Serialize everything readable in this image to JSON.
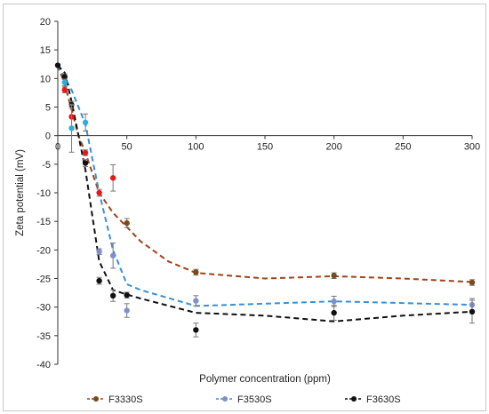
{
  "chart_data": {
    "type": "scatter",
    "xlabel": "Polymer concentration (ppm)",
    "ylabel": "Zeta potential (mV)",
    "xlim": [
      0,
      300
    ],
    "ylim": [
      -40,
      20
    ],
    "x_ticks": [
      0,
      50,
      100,
      150,
      200,
      250,
      300
    ],
    "y_ticks": [
      20,
      15,
      10,
      5,
      0,
      -5,
      -10,
      -15,
      -20,
      -25,
      -30,
      -35,
      -40
    ],
    "grid": false,
    "legend_position": "bottom",
    "legend": [
      "F3330S",
      "F3530S",
      "F3630S"
    ],
    "series": [
      {
        "name": "F3330S",
        "color": "#7a4a1a",
        "trend_color": "#a0421a",
        "points": [
          {
            "x": 50,
            "y": -15.3,
            "err": 0.8
          },
          {
            "x": 100,
            "y": -23.9,
            "err": 0.5
          },
          {
            "x": 200,
            "y": -24.5,
            "err": 0.5
          },
          {
            "x": 300,
            "y": -25.7,
            "err": 0.5
          }
        ],
        "trend": [
          [
            0,
            12.3
          ],
          [
            5,
            9
          ],
          [
            10,
            4.5
          ],
          [
            15,
            0
          ],
          [
            20,
            -3
          ],
          [
            25,
            -6.5
          ],
          [
            30,
            -10
          ],
          [
            40,
            -13.5
          ],
          [
            50,
            -16
          ],
          [
            60,
            -18.5
          ],
          [
            80,
            -22
          ],
          [
            100,
            -24
          ],
          [
            150,
            -25
          ],
          [
            200,
            -24.6
          ],
          [
            250,
            -25
          ],
          [
            300,
            -25.6
          ]
        ]
      },
      {
        "name": "F3530S",
        "color": "#7f8fcf",
        "trend_color": "#3a8fd6",
        "points": [
          {
            "x": 30,
            "y": -20.3,
            "err": 0.5
          },
          {
            "x": 40,
            "y": -21,
            "err": 2.2
          },
          {
            "x": 50,
            "y": -30.6,
            "err": 1.2
          },
          {
            "x": 100,
            "y": -28.9,
            "err": 0.9
          },
          {
            "x": 200,
            "y": -29.0,
            "err": 0.9
          },
          {
            "x": 300,
            "y": -29.6,
            "err": 1.1
          }
        ],
        "trend": [
          [
            0,
            12.3
          ],
          [
            10,
            8
          ],
          [
            20,
            2
          ],
          [
            25,
            -4
          ],
          [
            30,
            -10
          ],
          [
            40,
            -20
          ],
          [
            50,
            -26
          ],
          [
            60,
            -27
          ],
          [
            100,
            -29.8
          ],
          [
            200,
            -29
          ],
          [
            300,
            -29.6
          ]
        ]
      },
      {
        "name": "F3630S",
        "color": "#111111",
        "trend_color": "#111111",
        "points": [
          {
            "x": 0,
            "y": 12.3,
            "err": 0
          },
          {
            "x": 5,
            "y": 10.3,
            "err": 0.5
          },
          {
            "x": 10,
            "y": 5.4,
            "err": 0.6
          },
          {
            "x": 20,
            "y": -4.8,
            "err": 0.6
          },
          {
            "x": 30,
            "y": -25.4,
            "err": 0.6
          },
          {
            "x": 40,
            "y": -28.0,
            "err": 1.0
          },
          {
            "x": 50,
            "y": -27.9,
            "err": 0.5
          },
          {
            "x": 100,
            "y": -34.0,
            "err": 1.2
          },
          {
            "x": 200,
            "y": -31.0,
            "err": 1.3
          },
          {
            "x": 300,
            "y": -30.8,
            "err": 2.0
          }
        ],
        "trend": [
          [
            0,
            12.3
          ],
          [
            5,
            11
          ],
          [
            10,
            6
          ],
          [
            15,
            0
          ],
          [
            20,
            -6
          ],
          [
            25,
            -14
          ],
          [
            30,
            -22
          ],
          [
            40,
            -27
          ],
          [
            50,
            -27.8
          ],
          [
            60,
            -28.5
          ],
          [
            100,
            -31
          ],
          [
            150,
            -31.5
          ],
          [
            200,
            -32.5
          ],
          [
            250,
            -31.5
          ],
          [
            300,
            -30.8
          ]
        ]
      },
      {
        "name": "",
        "color": "#e8181a",
        "points": [
          {
            "x": 5,
            "y": 8.0,
            "err": 0.5
          },
          {
            "x": 10,
            "y": 3.3,
            "err": 2.0
          },
          {
            "x": 20,
            "y": -3.0,
            "err": 0.5
          },
          {
            "x": 30,
            "y": -10.0,
            "err": 0.6
          },
          {
            "x": 40,
            "y": -7.4,
            "err": 2.3
          }
        ]
      },
      {
        "name": "",
        "color": "#2ab0d8",
        "points": [
          {
            "x": 5,
            "y": 9.3,
            "err": 0.6
          },
          {
            "x": 10,
            "y": 1.3,
            "err": 4.2
          },
          {
            "x": 20,
            "y": 2.3,
            "err": 1.5
          }
        ]
      }
    ]
  }
}
